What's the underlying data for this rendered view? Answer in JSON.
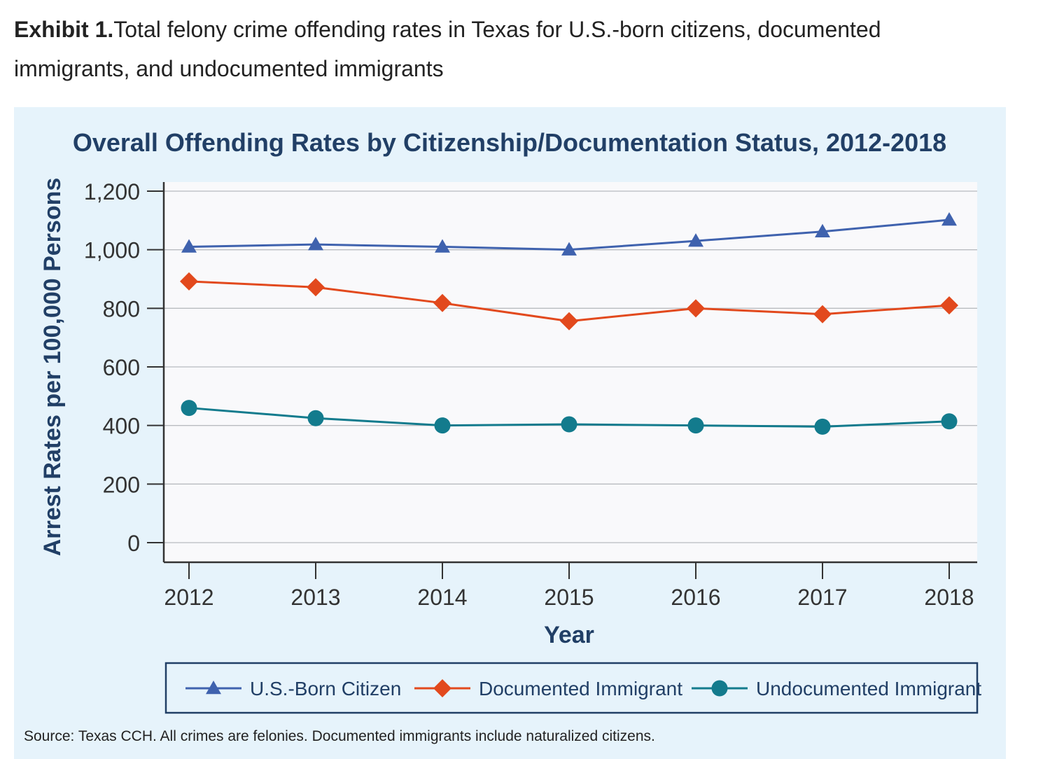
{
  "heading": {
    "label": "Exhibit 1.",
    "text": "Total felony crime offending rates in Texas for U.S.-born citizens, documented immigrants, and undocumented immigrants"
  },
  "source_note": "Source: Texas CCH. All crimes are felonies. Documented immigrants include naturalized citizens.",
  "chart_data": {
    "type": "line",
    "title": "Overall Offending Rates by Citizenship/Documentation Status, 2012-2018",
    "xlabel": "Year",
    "ylabel": "Arrest Rates per 100,000 Persons",
    "categories": [
      "2012",
      "2013",
      "2014",
      "2015",
      "2016",
      "2017",
      "2018"
    ],
    "ylim": [
      0,
      1200
    ],
    "yticks": [
      0,
      200,
      400,
      600,
      800,
      1000,
      1200
    ],
    "ytick_labels": [
      "0",
      "200",
      "400",
      "600",
      "800",
      "1,000",
      "1,200"
    ],
    "grid": true,
    "legend_position": "bottom",
    "series": [
      {
        "name": "U.S.-Born Citizen",
        "marker": "triangle",
        "color": "#3f62ae",
        "values": [
          1010,
          1018,
          1010,
          1000,
          1030,
          1062,
          1102
        ]
      },
      {
        "name": "Documented Immigrant",
        "marker": "diamond",
        "color": "#e2491d",
        "values": [
          892,
          872,
          818,
          756,
          800,
          780,
          810
        ]
      },
      {
        "name": "Undocumented Immigrant",
        "marker": "circle",
        "color": "#137b8d",
        "values": [
          460,
          425,
          400,
          404,
          400,
          396,
          414
        ]
      }
    ]
  }
}
